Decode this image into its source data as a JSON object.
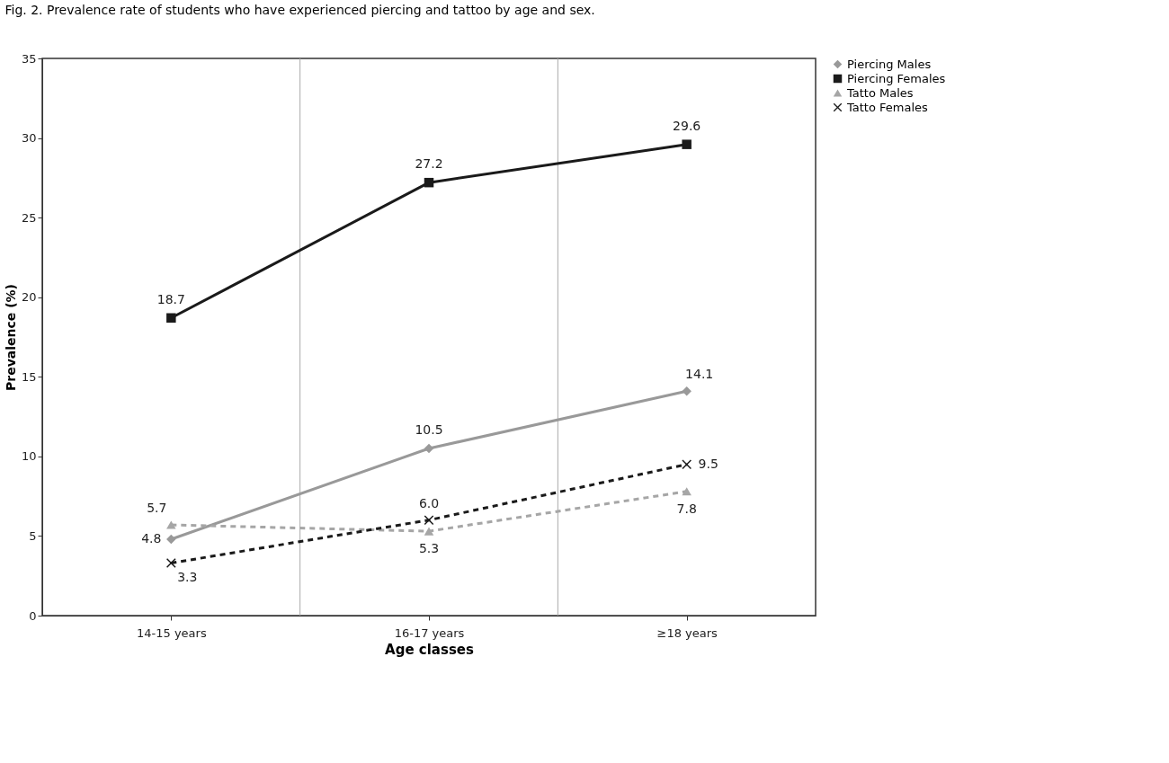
{
  "chart_data": {
    "type": "line",
    "title": "Fig. 2. Prevalence rate of students who have experienced piercing and tattoo by age and sex.",
    "xlabel": "Age classes",
    "ylabel": "Prevalence (%)",
    "categories": [
      "14-15 years",
      "16-17 years",
      "≥18 years"
    ],
    "ylim": [
      0,
      35
    ],
    "yticks": [
      0,
      5,
      10,
      15,
      20,
      25,
      30,
      35
    ],
    "grid": "x",
    "legend": "right",
    "series": [
      {
        "name": "Piercing Males",
        "color": "#999999",
        "marker": "diamond",
        "line_style": "solid",
        "values": [
          4.8,
          10.5,
          14.1
        ],
        "value_labels": [
          "4.8",
          "10.5",
          "14.1"
        ]
      },
      {
        "name": "Piercing Females",
        "color": "#1a1a1a",
        "marker": "square",
        "line_style": "solid",
        "values": [
          18.7,
          27.2,
          29.6
        ],
        "value_labels": [
          "18.7",
          "27.2",
          "29.6"
        ]
      },
      {
        "name": "Tatto Males",
        "color": "#a6a6a6",
        "marker": "triangle",
        "line_style": "dashed",
        "values": [
          5.7,
          5.3,
          7.8
        ],
        "value_labels": [
          "5.7",
          "5.3",
          "7.8"
        ]
      },
      {
        "name": "Tatto Females",
        "color": "#1a1a1a",
        "marker": "cross",
        "line_style": "dashed",
        "values": [
          3.3,
          6.0,
          9.5
        ],
        "value_labels": [
          "3.3",
          "6.0",
          "9.5"
        ]
      }
    ]
  }
}
